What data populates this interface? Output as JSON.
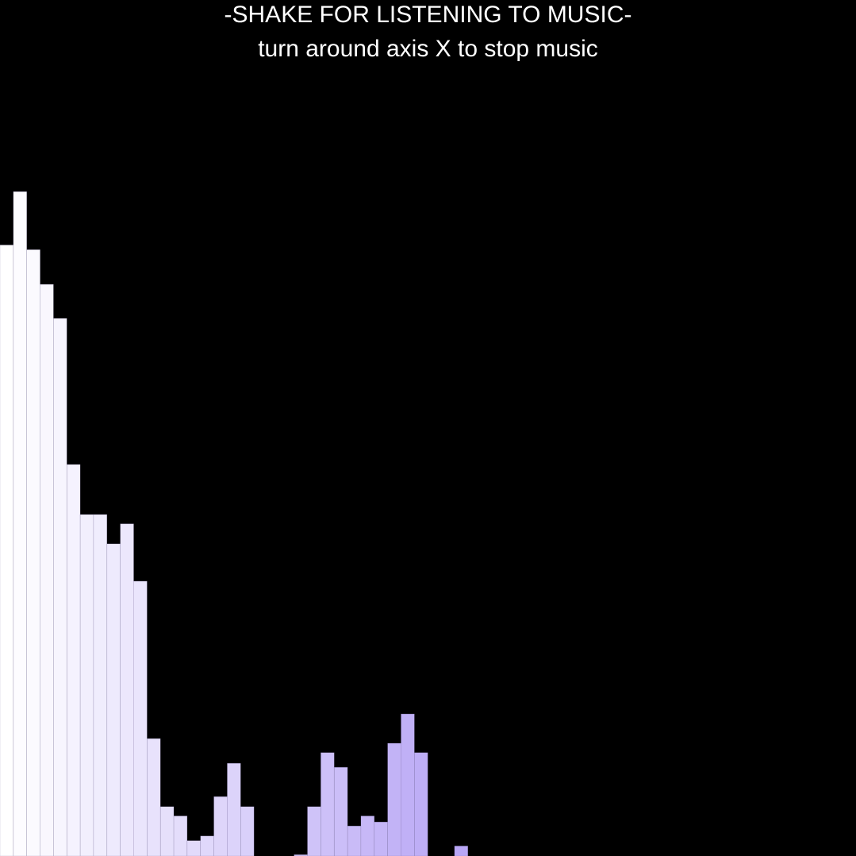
{
  "header": {
    "title": "-SHAKE FOR LISTENING TO MUSIC-",
    "subtitle": "turn around axis X to stop music"
  },
  "visualizer": {
    "max_level": 1,
    "color_start": "#ffffff",
    "color_end": "#b8a6f5",
    "levels": [
      0.916,
      0.996,
      0.909,
      0.857,
      0.806,
      0.587,
      0.512,
      0.512,
      0.468,
      0.498,
      0.412,
      0.176,
      0.074,
      0.06,
      0.023,
      0.03,
      0.089,
      0.139,
      0.074,
      0.0,
      0.0,
      0.0,
      0.002,
      0.074,
      0.155,
      0.133,
      0.045,
      0.06,
      0.051,
      0.169,
      0.213,
      0.155,
      0.0,
      0.0,
      0.015
    ]
  }
}
